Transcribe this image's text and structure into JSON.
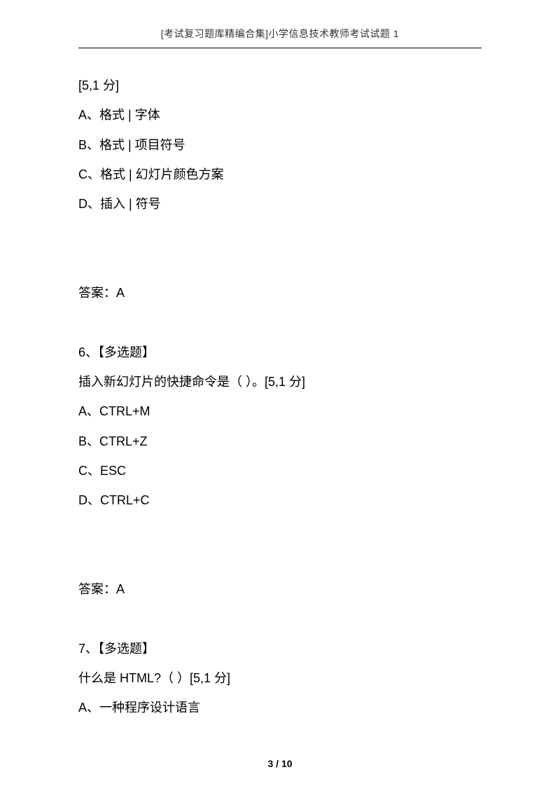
{
  "header": {
    "title": "[考试复习题库精编合集]小学信息技术教师考试试题 1"
  },
  "content": {
    "lines": [
      "[5,1 分]",
      "A、格式 | 字体",
      "B、格式 | 项目符号",
      "C、格式 | 幻灯片颜色方案",
      "D、插入 | 符号",
      "",
      "",
      "答案：A",
      "",
      "6、【多选题】",
      "插入新幻灯片的快捷命令是（ ）。[5,1 分]",
      "A、CTRL+M",
      "B、CTRL+Z",
      "C、ESC",
      "D、CTRL+C",
      "",
      "",
      "答案：A",
      "",
      "7、【多选题】",
      "什么是 HTML?（ ）[5,1 分]",
      "A、一种程序设计语言"
    ]
  },
  "footer": {
    "page_current": "3",
    "page_separator": " / ",
    "page_total": "10"
  }
}
